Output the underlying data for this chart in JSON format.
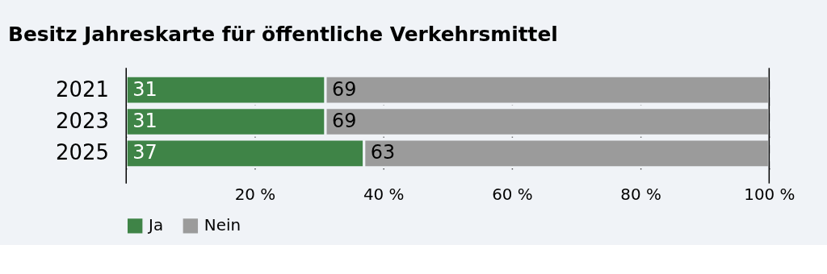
{
  "chart_data": {
    "type": "bar",
    "orientation": "horizontal",
    "stacked": true,
    "title": "Besitz Jahreskarte für öffentliche Verkehrsmittel",
    "categories": [
      "2021",
      "2023",
      "2025"
    ],
    "series": [
      {
        "name": "Ja",
        "color": "#3f8447",
        "values": [
          31,
          31,
          37
        ]
      },
      {
        "name": "Nein",
        "color": "#9b9b9b",
        "values": [
          69,
          69,
          63
        ]
      }
    ],
    "xlim": [
      0,
      100
    ],
    "xticks": [
      {
        "value": 0,
        "label": null
      },
      {
        "value": 20,
        "label": "20 %"
      },
      {
        "value": 40,
        "label": "40 %"
      },
      {
        "value": 60,
        "label": "60 %"
      },
      {
        "value": 80,
        "label": "80 %"
      },
      {
        "value": 100,
        "label": "100 %"
      }
    ],
    "grid": "x",
    "legend": "bottom",
    "data_labels": true
  }
}
